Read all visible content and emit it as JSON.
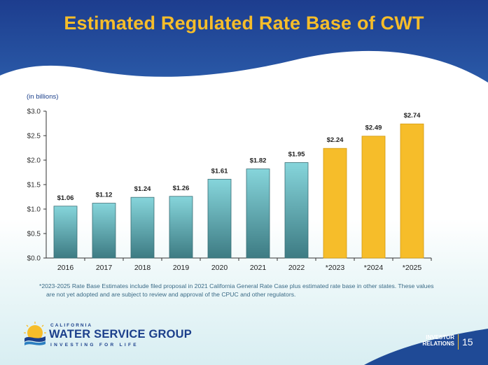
{
  "slide": {
    "title": "Estimated Regulated Rate Base of CWT",
    "footnote_line1": "*2023-2025 Rate Base Estimates include filed proposal in 2021 California General Rate Case plus estimated rate base in other states. These values",
    "footnote_line2": "are not yet adopted and are subject to review and approval of the CPUC and other regulators.",
    "logo_small": "CALIFORNIA",
    "logo_main": "WATER SERVICE GROUP",
    "logo_tagline": "INVESTING FOR LIFE",
    "ir_line1": "INVESTOR",
    "ir_line2": "RELATIONS",
    "page_number": "15"
  },
  "colors": {
    "title": "#f6bd2a",
    "header": "#1e3f8f",
    "actual_bar_top": "#7fd0d6",
    "actual_bar_bottom": "#3f7f86",
    "estimate_bar": "#f6bd2a",
    "estimate_edge": "#d39a10"
  },
  "chart_data": {
    "type": "bar",
    "ylabel": "(in billions)",
    "ylim": [
      0,
      3.0
    ],
    "yticks": [
      "$0.0",
      "$0.5",
      "$1.0",
      "$1.5",
      "$2.0",
      "$2.5",
      "$3.0"
    ],
    "categories": [
      "2016",
      "2017",
      "2018",
      "2019",
      "2020",
      "2021",
      "2022",
      "*2023",
      "*2024",
      "*2025"
    ],
    "values": [
      1.06,
      1.12,
      1.24,
      1.26,
      1.61,
      1.82,
      1.95,
      2.24,
      2.49,
      2.74
    ],
    "labels": [
      "$1.06",
      "$1.12",
      "$1.24",
      "$1.26",
      "$1.61",
      "$1.82",
      "$1.95",
      "$2.24",
      "$2.49",
      "$2.74"
    ],
    "estimated": [
      false,
      false,
      false,
      false,
      false,
      false,
      false,
      true,
      true,
      true
    ],
    "grid": false
  }
}
